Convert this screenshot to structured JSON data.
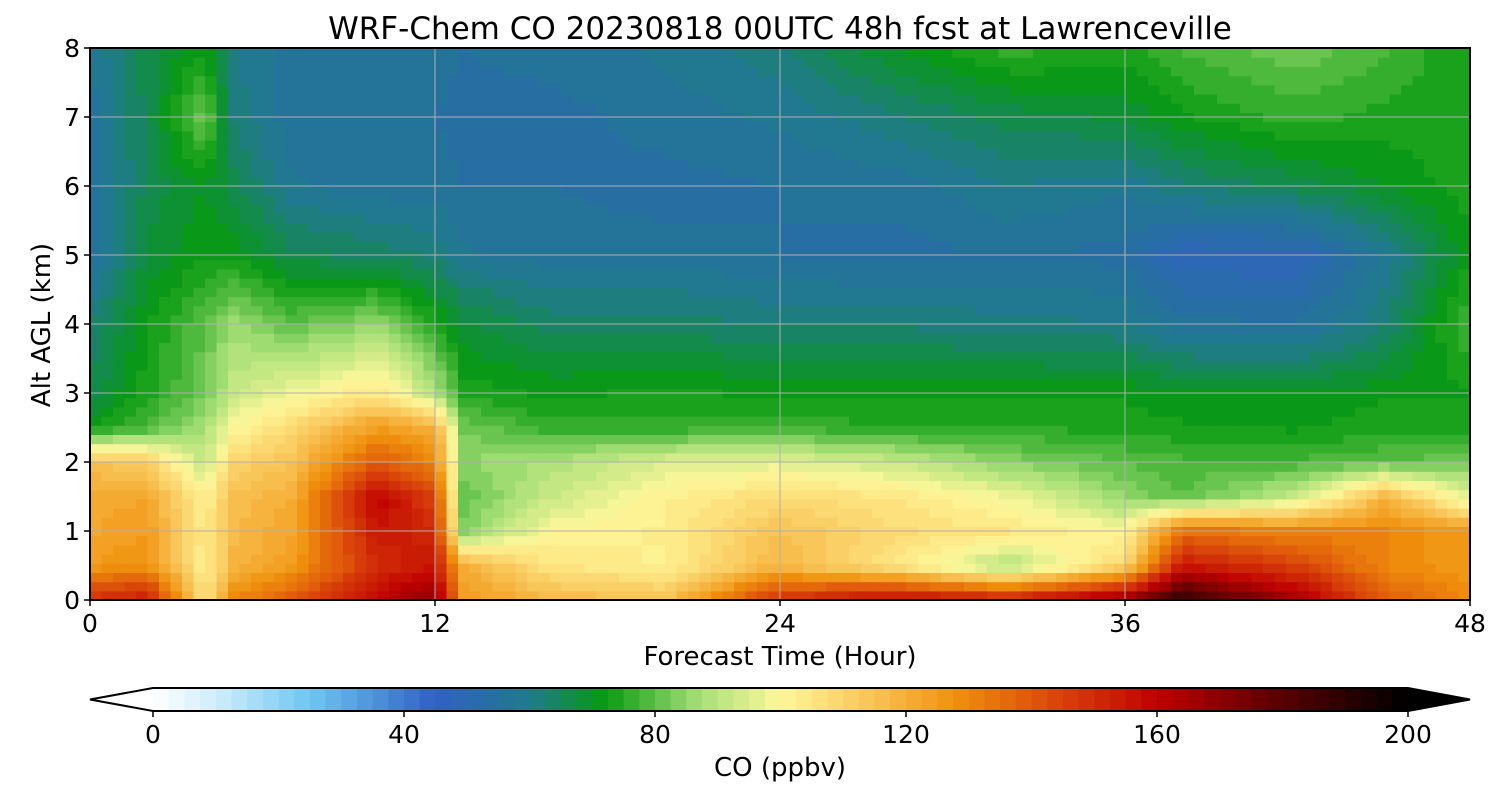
{
  "chart_data": {
    "type": "heatmap",
    "title": "WRF-Chem CO  20230818 00UTC 48h fcst at Lawrenceville",
    "xlabel": "Forecast Time (Hour)",
    "ylabel": "Alt AGL (km)",
    "xlim": [
      0,
      48
    ],
    "ylim": [
      0,
      8
    ],
    "xticks": [
      0,
      12,
      24,
      36,
      48
    ],
    "yticks": [
      0,
      1,
      2,
      3,
      4,
      5,
      6,
      7,
      8
    ],
    "grid": true,
    "x": [
      0,
      2,
      4,
      5,
      7,
      10,
      12,
      13,
      16,
      20,
      24,
      28,
      32,
      36,
      38,
      42,
      45,
      48
    ],
    "y": [
      0,
      0.5,
      1,
      1.5,
      2,
      2.5,
      3,
      4,
      5,
      6,
      7,
      8
    ],
    "z": [
      [
        150,
        155,
        105,
        130,
        140,
        160,
        170,
        125,
        118,
        115,
        150,
        160,
        155,
        170,
        190,
        165,
        140,
        130
      ],
      [
        125,
        128,
        102,
        118,
        125,
        150,
        155,
        120,
        105,
        102,
        118,
        105,
        88,
        110,
        155,
        145,
        130,
        125
      ],
      [
        122,
        125,
        103,
        117,
        122,
        155,
        150,
        84,
        100,
        103,
        115,
        108,
        105,
        100,
        135,
        130,
        130,
        125
      ],
      [
        122,
        122,
        102,
        116,
        120,
        160,
        145,
        80,
        92,
        102,
        108,
        105,
        98,
        85,
        80,
        92,
        118,
        95
      ],
      [
        115,
        112,
        90,
        110,
        115,
        140,
        130,
        85,
        88,
        95,
        96,
        92,
        84,
        80,
        78,
        78,
        80,
        82
      ],
      [
        72,
        78,
        88,
        100,
        108,
        125,
        120,
        82,
        76,
        76,
        77,
        75,
        75,
        74,
        73,
        72,
        74,
        74
      ],
      [
        66,
        74,
        82,
        92,
        98,
        105,
        90,
        74,
        72,
        73,
        72,
        72,
        72,
        72,
        70,
        70,
        72,
        72
      ],
      [
        62,
        72,
        80,
        86,
        80,
        85,
        74,
        68,
        64,
        64,
        62,
        62,
        61,
        60,
        56,
        55,
        62,
        78
      ],
      [
        55,
        68,
        72,
        72,
        66,
        64,
        62,
        58,
        56,
        56,
        55,
        54,
        55,
        54,
        48,
        48,
        58,
        72
      ],
      [
        54,
        66,
        70,
        66,
        58,
        56,
        56,
        55,
        55,
        54,
        55,
        56,
        60,
        58,
        62,
        66,
        70,
        74
      ],
      [
        55,
        66,
        82,
        62,
        56,
        55,
        55,
        54,
        54,
        56,
        58,
        62,
        66,
        68,
        72,
        76,
        74,
        74
      ],
      [
        58,
        66,
        72,
        60,
        56,
        56,
        56,
        55,
        56,
        58,
        62,
        70,
        76,
        74,
        78,
        82,
        78,
        72
      ]
    ],
    "colorbar": {
      "label": "CO  (ppbv)",
      "min": 0,
      "max": 200,
      "ticks": [
        0,
        40,
        80,
        120,
        160,
        200
      ],
      "extend": "both",
      "stops": [
        {
          "v": 0,
          "c": "#ffffff"
        },
        {
          "v": 10,
          "c": "#cfeefb"
        },
        {
          "v": 25,
          "c": "#6ec6f2"
        },
        {
          "v": 45,
          "c": "#3160c4"
        },
        {
          "v": 60,
          "c": "#1f7a8c"
        },
        {
          "v": 72,
          "c": "#089a10"
        },
        {
          "v": 87,
          "c": "#a6df77"
        },
        {
          "v": 100,
          "c": "#fff79a"
        },
        {
          "v": 115,
          "c": "#f8c254"
        },
        {
          "v": 128,
          "c": "#f0900c"
        },
        {
          "v": 145,
          "c": "#d8400a"
        },
        {
          "v": 160,
          "c": "#c00000"
        },
        {
          "v": 178,
          "c": "#600000"
        },
        {
          "v": 200,
          "c": "#000000"
        }
      ]
    }
  }
}
